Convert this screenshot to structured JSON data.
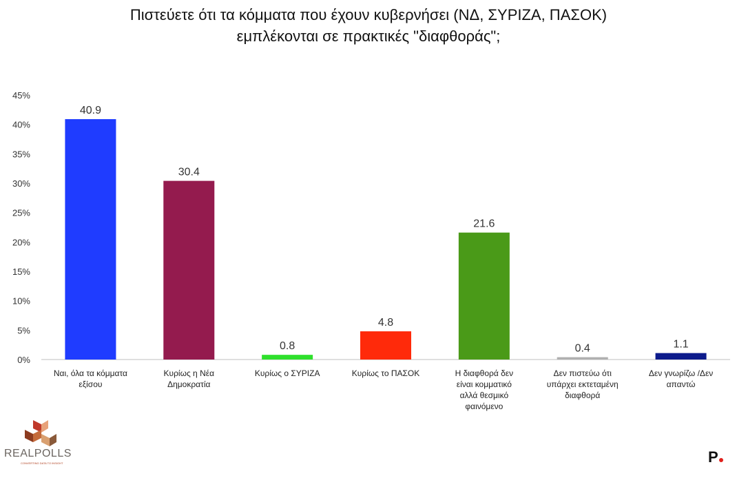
{
  "title_line1": "Πιστεύετε ότι τα κόμματα που έχουν κυβερνήσει (ΝΔ, ΣΥΡΙΖΑ, ΠΑΣΟΚ)",
  "title_line2": "εμπλέκονται σε πρακτικές \"διαφθοράς\";",
  "chart_data": {
    "type": "bar",
    "title": "Πιστεύετε ότι τα κόμματα που έχουν κυβερνήσει (ΝΔ, ΣΥΡΙΖΑ, ΠΑΣΟΚ) εμπλέκονται σε πρακτικές \"διαφθοράς\";",
    "ylim": [
      0,
      45
    ],
    "yticks": [
      "0%",
      "5%",
      "10%",
      "15%",
      "20%",
      "25%",
      "30%",
      "35%",
      "40%",
      "45%"
    ],
    "grid": false,
    "categories": [
      [
        "Ναι, όλα τα κόμματα",
        "εξίσου"
      ],
      [
        "Κυρίως η Νέα",
        "Δημοκρατία"
      ],
      [
        "Κυρίως ο ΣΥΡΙΖΑ"
      ],
      [
        "Κυρίως το ΠΑΣΟΚ"
      ],
      [
        "Η διαφθορά δεν",
        "είναι κομματικό",
        "αλλά  θεσμικό",
        "φαινόμενο"
      ],
      [
        "Δεν πιστεύω ότι",
        "υπάρχει  εκτεταμένη",
        "διαφθορά"
      ],
      [
        "Δεν γνωρίζω  /Δεν",
        "απαντώ"
      ]
    ],
    "values": [
      40.9,
      30.4,
      0.8,
      4.8,
      21.6,
      0.4,
      1.1
    ],
    "value_labels": [
      "40.9",
      "30.4",
      "0.8",
      "4.8",
      "21.6",
      "0.4",
      "1.1"
    ],
    "colors": [
      "#1f3cff",
      "#941b4e",
      "#2fe02c",
      "#ff2a0a",
      "#4a9a18",
      "#b0b0b0",
      "#0d1b8c"
    ]
  },
  "logos": {
    "left_brand": "REALPOLLS",
    "left_tagline": "CONVERTING DATA TO INSIGHT",
    "right_brand": "P"
  }
}
